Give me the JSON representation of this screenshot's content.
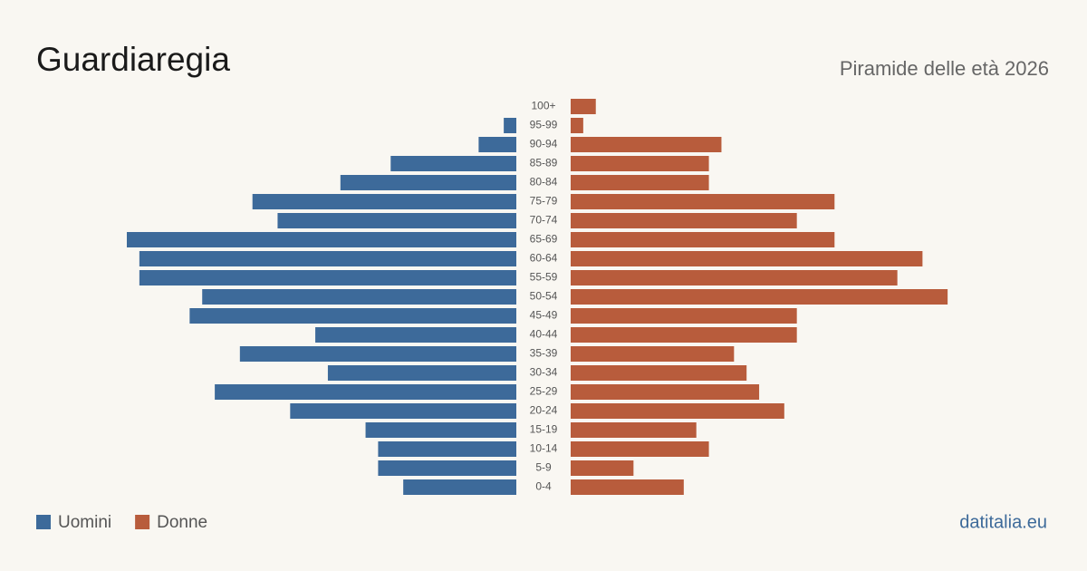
{
  "chart_data": {
    "type": "pyramid",
    "title": "Guardiaregia",
    "subtitle": "Piramide delle età 2026",
    "source": "datitalia.eu",
    "categories": [
      "100+",
      "95-99",
      "90-94",
      "85-89",
      "80-84",
      "75-79",
      "70-74",
      "65-69",
      "60-64",
      "55-59",
      "50-54",
      "45-49",
      "40-44",
      "35-39",
      "30-34",
      "25-29",
      "20-24",
      "15-19",
      "10-14",
      "5-9",
      "0-4"
    ],
    "series": [
      {
        "name": "Uomini",
        "color": "#3d6a9a",
        "values": [
          0,
          1,
          3,
          10,
          14,
          21,
          19,
          31,
          30,
          30,
          25,
          26,
          16,
          22,
          15,
          24,
          18,
          12,
          11,
          11,
          9
        ]
      },
      {
        "name": "Donne",
        "color": "#b85c3c",
        "values": [
          2,
          1,
          12,
          11,
          11,
          21,
          18,
          21,
          28,
          26,
          30,
          18,
          18,
          13,
          14,
          15,
          17,
          10,
          11,
          5,
          9
        ]
      }
    ],
    "xlim": [
      0,
      31
    ]
  }
}
